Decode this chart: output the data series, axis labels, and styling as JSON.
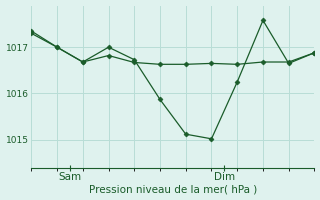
{
  "background_color": "#dff2ee",
  "grid_color": "#b8ddd6",
  "line_color": "#1a5c2a",
  "marker_color": "#1a5c2a",
  "xlabel": "Pression niveau de la mer( hPa )",
  "ylim": [
    1014.4,
    1017.9
  ],
  "yticks": [
    1015,
    1016,
    1017
  ],
  "ytick_labels": [
    "1015",
    "1016",
    "1017"
  ],
  "line1_x": [
    0,
    1,
    2,
    3,
    4,
    5,
    6,
    7,
    8,
    9,
    10,
    11
  ],
  "line1_y": [
    1017.35,
    1017.0,
    1016.68,
    1016.82,
    1016.67,
    1016.63,
    1016.63,
    1016.65,
    1016.63,
    1016.68,
    1016.68,
    1016.88
  ],
  "line2_x": [
    0,
    1,
    2,
    3,
    4,
    5,
    6,
    7,
    8,
    9,
    10,
    11
  ],
  "line2_y": [
    1017.3,
    1017.0,
    1016.68,
    1017.0,
    1016.73,
    1015.87,
    1015.12,
    1015.02,
    1016.25,
    1017.58,
    1016.65,
    1016.88
  ],
  "sam_x": 1.5,
  "dim_x": 7.5,
  "xlim": [
    0,
    11
  ],
  "n_grid_cols": 9,
  "tick_color": "#1a5c2a",
  "spine_color": "#1a5c2a",
  "label_fontsize": 7.5,
  "ytick_fontsize": 6.5,
  "xtick_fontsize": 7.5
}
